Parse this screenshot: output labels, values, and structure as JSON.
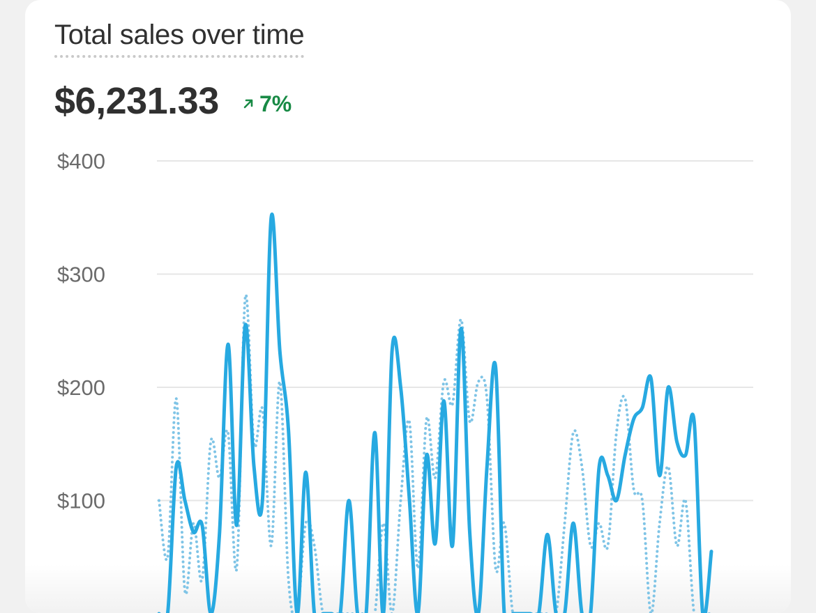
{
  "card": {
    "title": "Total sales over time",
    "total": "$6,231.33",
    "change": "7%",
    "change_icon": "arrow-up-right-icon",
    "change_color": "#188a45"
  },
  "chart_data": {
    "type": "line",
    "title": "Total sales over time",
    "ylim": [
      0,
      400
    ],
    "yticks": [
      "$100",
      "$200",
      "$300",
      "$400"
    ],
    "ytick_values": [
      100,
      200,
      300,
      400
    ],
    "grid": true,
    "series": [
      {
        "style": "solid",
        "color": "#27a9e1",
        "values": [
          0,
          0,
          130,
          100,
          72,
          78,
          0,
          70,
          238,
          78,
          255,
          130,
          102,
          350,
          232,
          162,
          0,
          125,
          0,
          0,
          0,
          0,
          100,
          0,
          0,
          160,
          0,
          232,
          200,
          102,
          0,
          140,
          62,
          188,
          60,
          252,
          72,
          0,
          130,
          218,
          0,
          0,
          0,
          0,
          0,
          70,
          0,
          0,
          80,
          0,
          0,
          130,
          122,
          100,
          140,
          172,
          182,
          208,
          122,
          200,
          152,
          140,
          170,
          0,
          55
        ]
      },
      {
        "style": "dotted",
        "color": "#7fc4e6",
        "values": [
          100,
          50,
          190,
          20,
          80,
          30,
          152,
          120,
          160,
          40,
          280,
          150,
          180,
          60,
          205,
          30,
          0,
          80,
          60,
          0,
          0,
          0,
          0,
          0,
          0,
          0,
          80,
          0,
          100,
          170,
          40,
          172,
          120,
          205,
          185,
          260,
          170,
          205,
          190,
          40,
          80,
          0,
          0,
          0,
          0,
          0,
          0,
          80,
          160,
          130,
          60,
          80,
          60,
          160,
          190,
          110,
          100,
          0,
          80,
          130,
          60,
          100,
          0,
          0,
          0
        ]
      }
    ]
  }
}
